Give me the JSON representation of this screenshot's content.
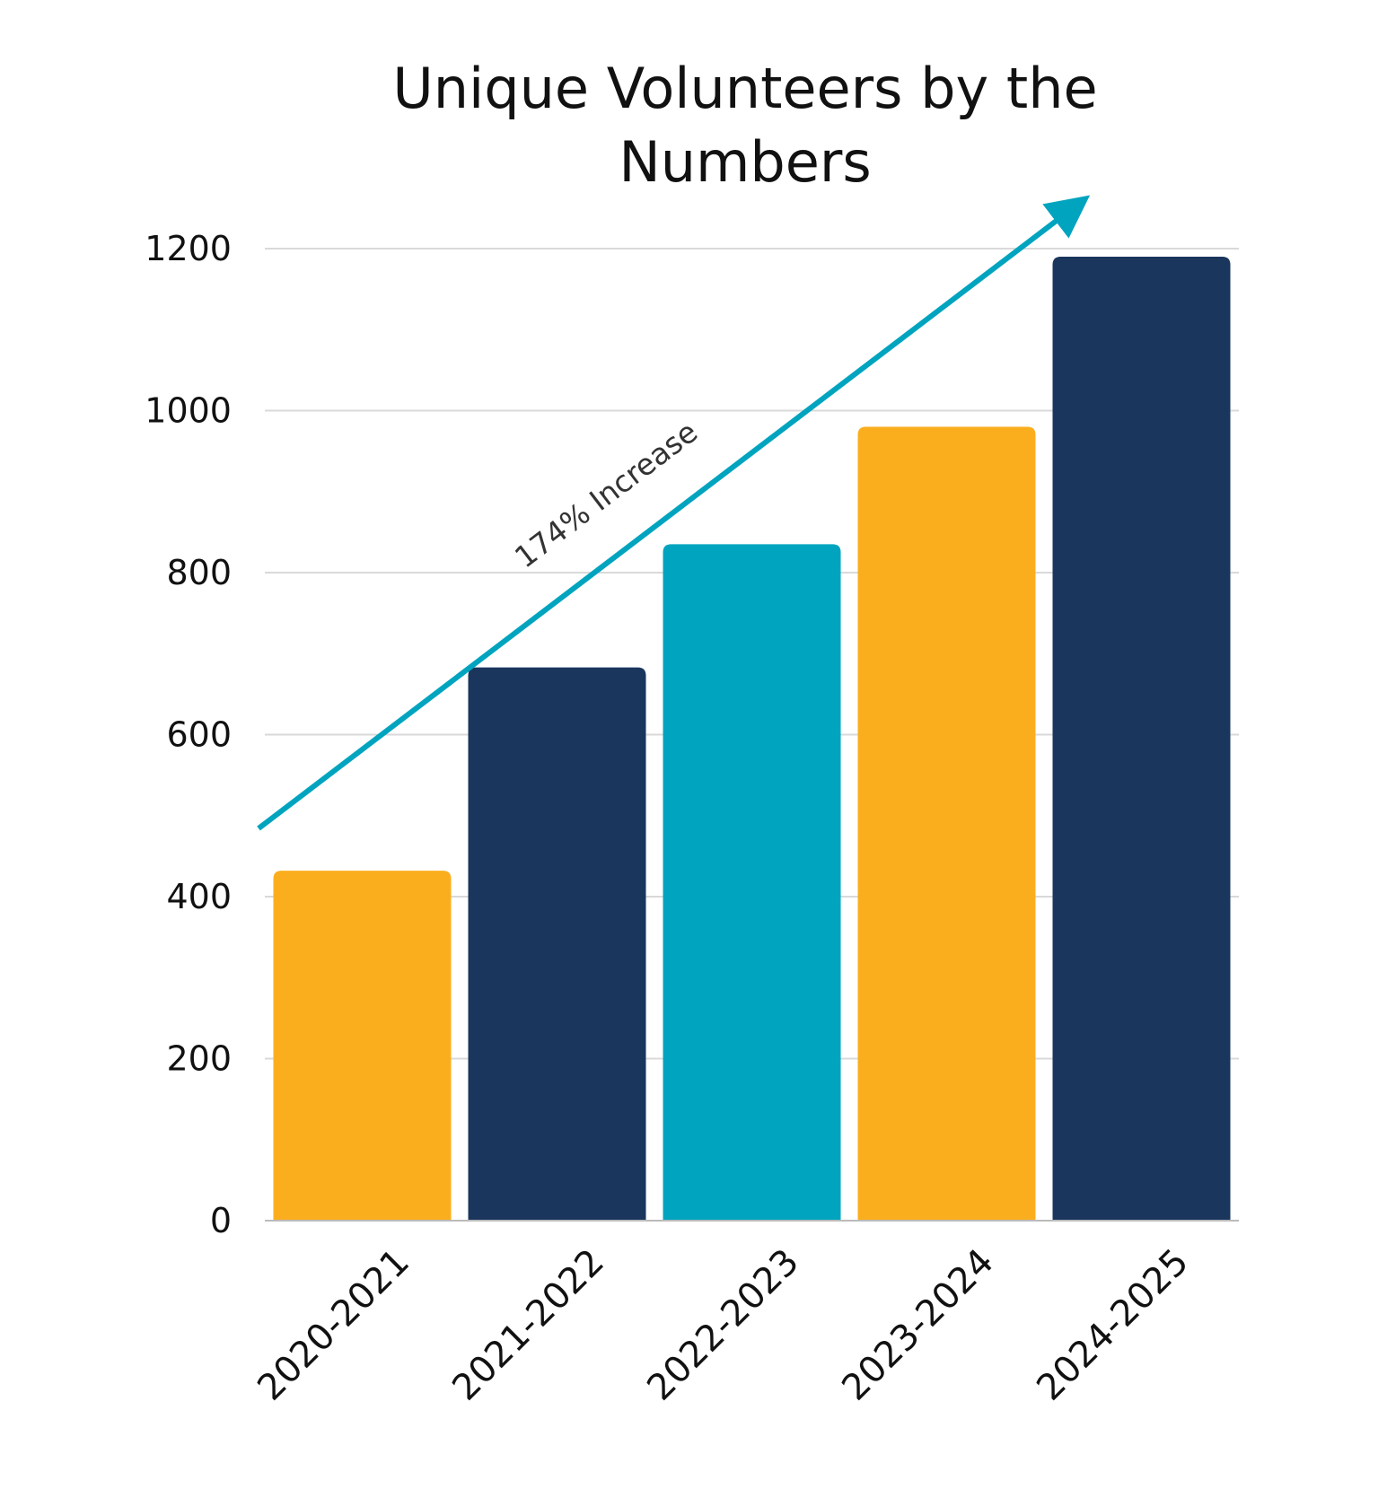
{
  "chart_data": {
    "type": "bar",
    "title": [
      "Unique Volunteers by the",
      "Numbers"
    ],
    "categories": [
      "2020-2021",
      "2021-2022",
      "2022-2023",
      "2023-2024",
      "2024-2025"
    ],
    "values": [
      432,
      683,
      835,
      980,
      1190
    ],
    "bar_colors": [
      "#FBAE1D",
      "#1A365D",
      "#00A4BF",
      "#FBAE1D",
      "#1A365D"
    ],
    "ylim": [
      0,
      1200
    ],
    "yticks": [
      0,
      200,
      400,
      600,
      800,
      1000,
      1200
    ],
    "grid": true,
    "annotation": {
      "text": "174% Increase",
      "color": "#00A4BF"
    }
  }
}
